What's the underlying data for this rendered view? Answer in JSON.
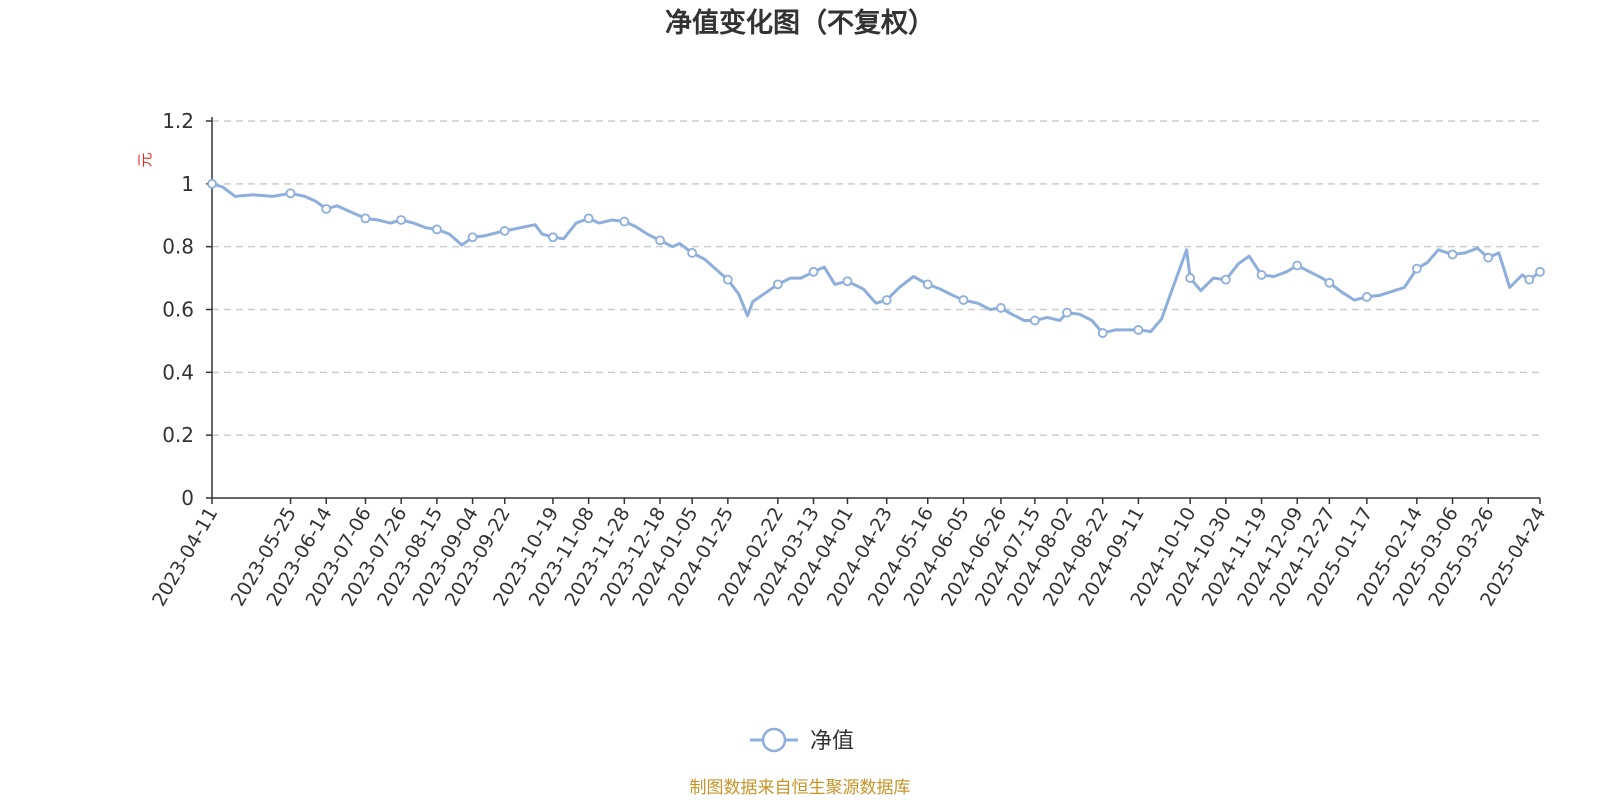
{
  "chart_data": {
    "type": "line",
    "title": "净值变化图（不复权）",
    "ylabel": "元",
    "ylim": [
      0,
      1.2
    ],
    "yticks": [
      "0",
      "0.2",
      "0.4",
      "0.6",
      "0.8",
      "1",
      "1.2"
    ],
    "grid": true,
    "legend_position": "bottom-center",
    "colors": {
      "line": "#8eaedc",
      "marker_fill": "#ffffff",
      "axis": "#333333",
      "grid": "#cccccc"
    },
    "x_start": "2023-04-11",
    "x_end": "2025-04-24",
    "x_tick_labels": [
      "2023-04-11",
      "2023-05-25",
      "2023-06-14",
      "2023-07-06",
      "2023-07-26",
      "2023-08-15",
      "2023-09-04",
      "2023-09-22",
      "2023-10-19",
      "2023-11-08",
      "2023-11-28",
      "2023-12-18",
      "2024-01-05",
      "2024-01-25",
      "2024-02-22",
      "2024-03-13",
      "2024-04-01",
      "2024-04-23",
      "2024-05-16",
      "2024-06-05",
      "2024-06-26",
      "2024-07-15",
      "2024-08-02",
      "2024-08-22",
      "2024-09-11",
      "2024-10-10",
      "2024-10-30",
      "2024-11-19",
      "2024-12-09",
      "2024-12-27",
      "2025-01-17",
      "2025-02-14",
      "2025-03-06",
      "2025-03-26",
      "2025-04-24"
    ],
    "series": [
      {
        "name": "净值",
        "points": [
          [
            "2023-04-11",
            1.0
          ],
          [
            "2023-04-17",
            0.99
          ],
          [
            "2023-04-24",
            0.96
          ],
          [
            "2023-05-04",
            0.965
          ],
          [
            "2023-05-15",
            0.96
          ],
          [
            "2023-05-25",
            0.97
          ],
          [
            "2023-06-02",
            0.96
          ],
          [
            "2023-06-08",
            0.945
          ],
          [
            "2023-06-14",
            0.92
          ],
          [
            "2023-06-20",
            0.93
          ],
          [
            "2023-06-28",
            0.91
          ],
          [
            "2023-07-06",
            0.89
          ],
          [
            "2023-07-13",
            0.885
          ],
          [
            "2023-07-20",
            0.875
          ],
          [
            "2023-07-26",
            0.885
          ],
          [
            "2023-08-02",
            0.875
          ],
          [
            "2023-08-09",
            0.86
          ],
          [
            "2023-08-15",
            0.855
          ],
          [
            "2023-08-22",
            0.84
          ],
          [
            "2023-08-29",
            0.805
          ],
          [
            "2023-09-04",
            0.83
          ],
          [
            "2023-09-11",
            0.835
          ],
          [
            "2023-09-18",
            0.845
          ],
          [
            "2023-09-22",
            0.85
          ],
          [
            "2023-10-09",
            0.87
          ],
          [
            "2023-10-13",
            0.84
          ],
          [
            "2023-10-19",
            0.83
          ],
          [
            "2023-10-25",
            0.825
          ],
          [
            "2023-11-01",
            0.875
          ],
          [
            "2023-11-08",
            0.89
          ],
          [
            "2023-11-14",
            0.875
          ],
          [
            "2023-11-21",
            0.885
          ],
          [
            "2023-11-28",
            0.88
          ],
          [
            "2023-12-04",
            0.865
          ],
          [
            "2023-12-11",
            0.84
          ],
          [
            "2023-12-18",
            0.82
          ],
          [
            "2023-12-25",
            0.8
          ],
          [
            "2023-12-29",
            0.81
          ],
          [
            "2024-01-05",
            0.78
          ],
          [
            "2024-01-12",
            0.76
          ],
          [
            "2024-01-19",
            0.725
          ],
          [
            "2024-01-25",
            0.695
          ],
          [
            "2024-01-31",
            0.65
          ],
          [
            "2024-02-05",
            0.58
          ],
          [
            "2024-02-08",
            0.625
          ],
          [
            "2024-02-22",
            0.68
          ],
          [
            "2024-02-29",
            0.7
          ],
          [
            "2024-03-06",
            0.7
          ],
          [
            "2024-03-13",
            0.72
          ],
          [
            "2024-03-19",
            0.735
          ],
          [
            "2024-03-25",
            0.68
          ],
          [
            "2024-04-01",
            0.69
          ],
          [
            "2024-04-10",
            0.665
          ],
          [
            "2024-04-17",
            0.62
          ],
          [
            "2024-04-23",
            0.63
          ],
          [
            "2024-04-30",
            0.67
          ],
          [
            "2024-05-08",
            0.705
          ],
          [
            "2024-05-16",
            0.68
          ],
          [
            "2024-05-23",
            0.665
          ],
          [
            "2024-05-30",
            0.645
          ],
          [
            "2024-06-05",
            0.63
          ],
          [
            "2024-06-13",
            0.62
          ],
          [
            "2024-06-20",
            0.6
          ],
          [
            "2024-06-26",
            0.605
          ],
          [
            "2024-07-02",
            0.585
          ],
          [
            "2024-07-09",
            0.565
          ],
          [
            "2024-07-15",
            0.565
          ],
          [
            "2024-07-22",
            0.575
          ],
          [
            "2024-07-29",
            0.565
          ],
          [
            "2024-08-02",
            0.59
          ],
          [
            "2024-08-09",
            0.585
          ],
          [
            "2024-08-16",
            0.565
          ],
          [
            "2024-08-22",
            0.525
          ],
          [
            "2024-08-29",
            0.535
          ],
          [
            "2024-09-05",
            0.535
          ],
          [
            "2024-09-11",
            0.535
          ],
          [
            "2024-09-18",
            0.53
          ],
          [
            "2024-09-24",
            0.57
          ],
          [
            "2024-09-30",
            0.665
          ],
          [
            "2024-10-08",
            0.79
          ],
          [
            "2024-10-10",
            0.7
          ],
          [
            "2024-10-16",
            0.66
          ],
          [
            "2024-10-23",
            0.7
          ],
          [
            "2024-10-30",
            0.695
          ],
          [
            "2024-11-06",
            0.745
          ],
          [
            "2024-11-12",
            0.77
          ],
          [
            "2024-11-19",
            0.71
          ],
          [
            "2024-11-26",
            0.705
          ],
          [
            "2024-12-03",
            0.72
          ],
          [
            "2024-12-09",
            0.74
          ],
          [
            "2024-12-16",
            0.72
          ],
          [
            "2024-12-23",
            0.7
          ],
          [
            "2024-12-27",
            0.685
          ],
          [
            "2025-01-03",
            0.655
          ],
          [
            "2025-01-10",
            0.63
          ],
          [
            "2025-01-17",
            0.64
          ],
          [
            "2025-01-24",
            0.645
          ],
          [
            "2025-02-07",
            0.67
          ],
          [
            "2025-02-14",
            0.73
          ],
          [
            "2025-02-20",
            0.75
          ],
          [
            "2025-02-26",
            0.79
          ],
          [
            "2025-03-06",
            0.775
          ],
          [
            "2025-03-13",
            0.78
          ],
          [
            "2025-03-20",
            0.795
          ],
          [
            "2025-03-26",
            0.765
          ],
          [
            "2025-04-01",
            0.78
          ],
          [
            "2025-04-07",
            0.67
          ],
          [
            "2025-04-14",
            0.71
          ],
          [
            "2025-04-18",
            0.695
          ],
          [
            "2025-04-24",
            0.72
          ]
        ],
        "markers": [
          [
            "2023-04-11",
            1.0
          ],
          [
            "2023-05-25",
            0.97
          ],
          [
            "2023-06-14",
            0.92
          ],
          [
            "2023-07-06",
            0.89
          ],
          [
            "2023-07-26",
            0.885
          ],
          [
            "2023-08-15",
            0.855
          ],
          [
            "2023-09-04",
            0.83
          ],
          [
            "2023-09-22",
            0.85
          ],
          [
            "2023-10-19",
            0.83
          ],
          [
            "2023-11-08",
            0.89
          ],
          [
            "2023-11-28",
            0.88
          ],
          [
            "2023-12-18",
            0.82
          ],
          [
            "2024-01-05",
            0.78
          ],
          [
            "2024-01-25",
            0.695
          ],
          [
            "2024-02-22",
            0.68
          ],
          [
            "2024-03-13",
            0.72
          ],
          [
            "2024-04-01",
            0.69
          ],
          [
            "2024-04-23",
            0.63
          ],
          [
            "2024-05-16",
            0.68
          ],
          [
            "2024-06-05",
            0.63
          ],
          [
            "2024-06-26",
            0.605
          ],
          [
            "2024-07-15",
            0.565
          ],
          [
            "2024-08-02",
            0.59
          ],
          [
            "2024-08-22",
            0.525
          ],
          [
            "2024-09-11",
            0.535
          ],
          [
            "2024-10-10",
            0.7
          ],
          [
            "2024-10-30",
            0.695
          ],
          [
            "2024-11-19",
            0.71
          ],
          [
            "2024-12-09",
            0.74
          ],
          [
            "2024-12-27",
            0.685
          ],
          [
            "2025-01-17",
            0.64
          ],
          [
            "2025-02-14",
            0.73
          ],
          [
            "2025-03-06",
            0.775
          ],
          [
            "2025-03-26",
            0.765
          ],
          [
            "2025-04-18",
            0.695
          ],
          [
            "2025-04-24",
            0.72
          ]
        ]
      }
    ]
  },
  "legend": {
    "label": "净值"
  },
  "footer": {
    "source": "制图数据来自恒生聚源数据库"
  }
}
